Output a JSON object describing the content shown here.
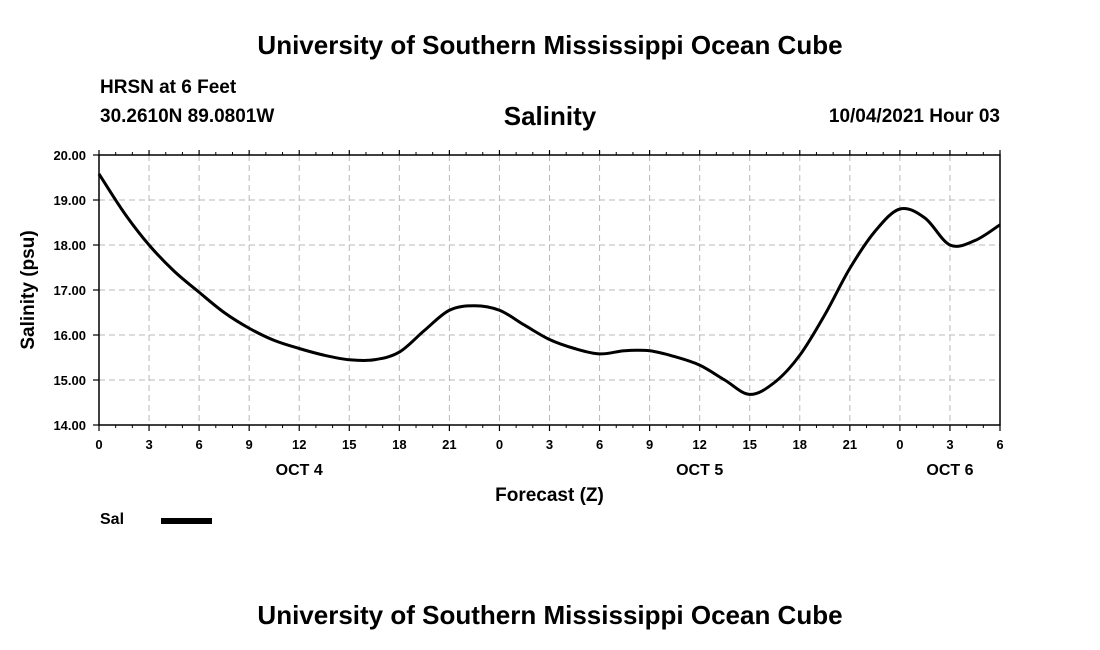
{
  "header": {
    "top_title": "University of Southern Mississippi Ocean Cube",
    "station": "HRSN at 6 Feet",
    "coords": "30.2610N  89.0801W",
    "chart_title": "Salinity",
    "date_label": "10/04/2021 Hour 03",
    "bottom_title": "University of Southern Mississippi Ocean Cube"
  },
  "chart_data": {
    "type": "line",
    "title": "Salinity",
    "xlabel": "Forecast (Z)",
    "ylabel": "Salinity (psu)",
    "ylim": [
      14.0,
      20.0
    ],
    "y_ticks": [
      "14.00",
      "15.00",
      "16.00",
      "17.00",
      "18.00",
      "19.00",
      "20.00"
    ],
    "xlim": [
      0,
      54
    ],
    "x_ticks": [
      0,
      3,
      6,
      9,
      12,
      15,
      18,
      21,
      24,
      27,
      30,
      33,
      36,
      39,
      42,
      45,
      48,
      51,
      54
    ],
    "x_tick_labels": [
      "0",
      "3",
      "6",
      "9",
      "12",
      "15",
      "18",
      "21",
      "0",
      "3",
      "6",
      "9",
      "12",
      "15",
      "18",
      "21",
      "0",
      "3",
      "6"
    ],
    "day_labels": [
      {
        "x": 12,
        "label": "OCT 4"
      },
      {
        "x": 36,
        "label": "OCT 5"
      },
      {
        "x": 51,
        "label": "OCT 6"
      }
    ],
    "grid": true,
    "legend": "bottom-left",
    "series": [
      {
        "name": "Sal",
        "color": "#000000",
        "x": [
          0,
          1.5,
          3,
          4.5,
          6,
          7.5,
          9,
          10.5,
          12,
          13.5,
          15,
          16.5,
          18,
          19.5,
          21,
          22.5,
          24,
          25.5,
          27,
          28.5,
          30,
          31.5,
          33,
          34.5,
          36,
          37.5,
          39,
          40.5,
          42,
          43.5,
          45,
          46.5,
          48,
          49.5,
          51,
          52.5,
          54
        ],
        "values": [
          19.58,
          18.72,
          18.0,
          17.42,
          16.95,
          16.5,
          16.15,
          15.88,
          15.7,
          15.55,
          15.45,
          15.45,
          15.62,
          16.1,
          16.55,
          16.65,
          16.55,
          16.22,
          15.9,
          15.7,
          15.58,
          15.65,
          15.65,
          15.52,
          15.33,
          15.0,
          14.68,
          14.95,
          15.55,
          16.45,
          17.48,
          18.3,
          18.8,
          18.6,
          18.0,
          18.1,
          18.45
        ]
      }
    ]
  }
}
